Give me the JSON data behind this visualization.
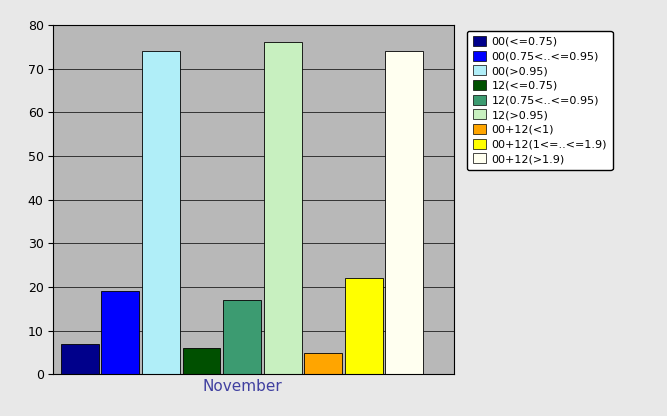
{
  "month": "November",
  "series": [
    {
      "label": "00(<=0.75)",
      "value": 7,
      "color": "#00008B"
    },
    {
      "label": "00(0.75<..<=0.95)",
      "value": 19,
      "color": "#0000FF"
    },
    {
      "label": "00(>0.95)",
      "value": 74,
      "color": "#B0EEF8"
    },
    {
      "label": "12(<=0.75)",
      "value": 6,
      "color": "#005000"
    },
    {
      "label": "12(0.75<..<=0.95)",
      "value": 17,
      "color": "#3C9B71"
    },
    {
      "label": "12(>0.95)",
      "value": 76,
      "color": "#C8F0C0"
    },
    {
      "label": "00+12(<1)",
      "value": 5,
      "color": "#FFA500"
    },
    {
      "label": "00+12(1<=..<=1.9)",
      "value": 22,
      "color": "#FFFF00"
    },
    {
      "label": "00+12(>1.9)",
      "value": 74,
      "color": "#FFFFF0"
    }
  ],
  "ylim": [
    0,
    80
  ],
  "yticks": [
    0,
    10,
    20,
    30,
    40,
    50,
    60,
    70,
    80
  ],
  "plot_bg": "#B8B8B8",
  "fig_bg": "#E8E8E8",
  "xlabel_color": "#4040A0",
  "legend_fontsize": 8,
  "bar_edge_color": "#000000"
}
